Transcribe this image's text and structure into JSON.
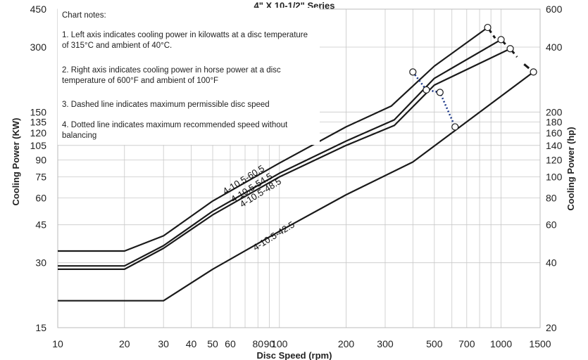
{
  "chart_data": {
    "type": "line",
    "title": "4\" X 10-1/2\" Series",
    "xlabel": "Disc Speed (rpm)",
    "ylabel": "Cooling Power (KW)",
    "y2label": "Cooling Power (hp)",
    "xscale": "log",
    "yscale": "log",
    "xlim": [
      10,
      1500
    ],
    "ylim": [
      15,
      450
    ],
    "y2lim": [
      20,
      600
    ],
    "grid": true,
    "legend": "none",
    "x_ticks": [
      10,
      20,
      30,
      40,
      50,
      60,
      80,
      90,
      100,
      200,
      300,
      500,
      700,
      1000,
      1500
    ],
    "y_ticks": [
      15,
      30,
      45,
      60,
      75,
      90,
      105,
      120,
      135,
      150,
      300,
      450
    ],
    "y2_ticks": [
      20,
      40,
      60,
      80,
      100,
      120,
      140,
      160,
      180,
      200,
      400,
      600
    ],
    "series": [
      {
        "name": "4-10.5-60.5",
        "x": [
          10,
          20,
          30,
          50,
          100,
          200,
          320,
          500,
          870
        ],
        "y": [
          34,
          34,
          40,
          58,
          87,
          128,
          160,
          245,
          370
        ],
        "dashed_end": [
          870,
          370
        ]
      },
      {
        "name": "4-10.5-54.5",
        "x": [
          10,
          20,
          30,
          50,
          100,
          200,
          330,
          500,
          1000
        ],
        "y": [
          29,
          29,
          36,
          52,
          78,
          110,
          138,
          215,
          325
        ],
        "dashed_end": [
          1000,
          325
        ]
      },
      {
        "name": "4-10.5-48.5",
        "x": [
          10,
          20,
          30,
          50,
          100,
          200,
          330,
          500,
          1100
        ],
        "y": [
          28,
          28,
          35,
          50,
          75,
          105,
          130,
          200,
          295
        ],
        "dashed_end": [
          1100,
          295
        ]
      },
      {
        "name": "4-10.5-42.5",
        "x": [
          10,
          20,
          30,
          50,
          100,
          200,
          400,
          1400
        ],
        "y": [
          20,
          20,
          20,
          28,
          42,
          62,
          88,
          230
        ],
        "dashed_end": [
          1400,
          230
        ]
      }
    ],
    "dashed_segments": [
      [
        [
          870,
          370
        ],
        [
          940,
          330
        ]
      ],
      [
        [
          1000,
          325
        ],
        [
          1060,
          305
        ]
      ],
      [
        [
          1100,
          295
        ],
        [
          1180,
          270
        ]
      ],
      [
        [
          1270,
          250
        ],
        [
          1400,
          230
        ]
      ]
    ],
    "dotted_line": {
      "x": [
        400,
        460,
        530,
        620
      ],
      "y": [
        230,
        190,
        185,
        128
      ]
    },
    "notes": {
      "heading": "Chart notes:",
      "items": [
        "1. Left axis indicates cooling power in kilowatts at a disc temperature of 315°C and ambient of 40°C.",
        "2. Right axis indicates cooling power in horse power at a disc temperature of 600°F and ambient of 100°F",
        "3. Dashed line indicates maximum permissible disc speed",
        "4. Dotted line indicates maximum recommended speed without balancing"
      ]
    }
  }
}
